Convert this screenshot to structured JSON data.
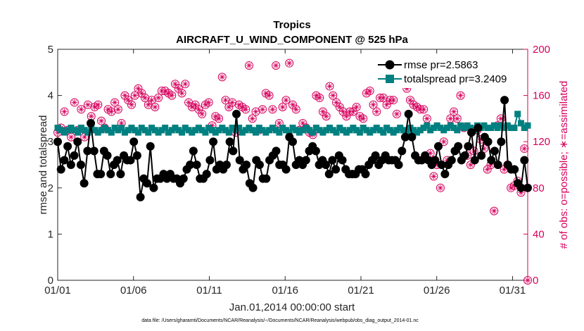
{
  "chart_data": {
    "type": "line",
    "title": "Tropics",
    "subtitle": "AIRCRAFT_U_WIND_COMPONENT @ 525 hPa",
    "xlabel": "Jan.01,2014 00:00:00 start",
    "ylabel": "rmse and totalspread",
    "y2label": "# of obs: o=possible; ∗=assimilated",
    "footnote": "data file: /Users/gharamti/Documents/NCAR/Reanalysis/~/Documents/NCAR/Reanalysis/webpub/obs_diag_output_2014-01.nc",
    "xlim": [
      0,
      31
    ],
    "ylim": [
      0,
      5
    ],
    "y2lim": [
      0,
      200
    ],
    "xticks": [
      0,
      5,
      10,
      15,
      20,
      25,
      30
    ],
    "xticklabels": [
      "01/01",
      "01/06",
      "01/11",
      "01/16",
      "01/21",
      "01/26",
      "01/31"
    ],
    "yticks": [
      0,
      1,
      2,
      3,
      4,
      5
    ],
    "y2ticks": [
      0,
      40,
      80,
      120,
      160,
      200
    ],
    "legend_location": "top-right",
    "series": [
      {
        "name": "rmse pr=2.5863",
        "axis": "left",
        "color": "#000000",
        "marker": "circle",
        "values": [
          3.0,
          2.4,
          2.6,
          2.9,
          2.5,
          2.7,
          3.0,
          2.5,
          2.1,
          2.8,
          3.4,
          2.8,
          2.3,
          2.3,
          2.8,
          2.7,
          2.3,
          2.5,
          2.6,
          2.3,
          2.7,
          2.6,
          2.6,
          3.0,
          2.7,
          1.8,
          2.2,
          2.1,
          2.9,
          2.0,
          2.2,
          2.2,
          2.3,
          2.2,
          2.3,
          2.2,
          2.2,
          2.1,
          2.2,
          2.4,
          2.5,
          2.8,
          2.5,
          2.2,
          2.2,
          2.3,
          2.6,
          3.0,
          2.4,
          2.5,
          2.4,
          2.5,
          3.0,
          2.8,
          3.6,
          2.6,
          2.4,
          2.5,
          2.1,
          2.0,
          2.6,
          2.5,
          2.2,
          2.2,
          2.6,
          2.7,
          2.8,
          2.5,
          2.5,
          2.4,
          3.1,
          3.0,
          2.5,
          2.6,
          2.5,
          2.6,
          2.8,
          2.9,
          2.8,
          2.5,
          2.6,
          2.5,
          2.3,
          2.6,
          2.4,
          2.7,
          2.6,
          2.4,
          2.3,
          2.3,
          2.3,
          2.4,
          2.4,
          2.3,
          2.5,
          2.6,
          2.7,
          2.5,
          2.6,
          2.7,
          2.6,
          2.6,
          2.6,
          2.5,
          2.8,
          3.1,
          3.6,
          3.1,
          2.7,
          2.6,
          2.6,
          2.7,
          2.6,
          2.5,
          2.6,
          2.9,
          2.5,
          2.3,
          2.5,
          2.6,
          2.8,
          2.9,
          2.6,
          2.7,
          2.9,
          3.2,
          2.6,
          3.3,
          2.7,
          3.1,
          3.0,
          2.6,
          2.8,
          2.5,
          3.0,
          3.9,
          2.5,
          2.4,
          2.4,
          2.1,
          2.0,
          2.6,
          2.0
        ]
      },
      {
        "name": "totalspread pr=3.2409",
        "axis": "left",
        "color": "#008080",
        "marker": "square",
        "values": [
          3.3,
          3.25,
          3.2,
          3.25,
          3.3,
          3.25,
          3.2,
          3.3,
          3.25,
          3.2,
          3.3,
          3.25,
          3.2,
          3.25,
          3.3,
          3.25,
          3.2,
          3.3,
          3.25,
          3.3,
          3.2,
          3.25,
          3.3,
          3.25,
          3.2,
          3.3,
          3.25,
          3.2,
          3.3,
          3.25,
          3.2,
          3.25,
          3.3,
          3.2,
          3.25,
          3.3,
          3.25,
          3.2,
          3.3,
          3.25,
          3.2,
          3.25,
          3.3,
          3.25,
          3.2,
          3.3,
          3.25,
          3.2,
          3.25,
          3.3,
          3.25,
          3.2,
          3.3,
          3.25,
          3.3,
          3.2,
          3.25,
          3.3,
          3.25,
          3.2,
          3.3,
          3.25,
          3.2,
          3.25,
          3.3,
          3.25,
          3.2,
          3.3,
          3.25,
          3.2,
          3.3,
          3.25,
          3.2,
          3.25,
          3.3,
          3.25,
          3.2,
          3.3,
          3.25,
          3.2,
          3.25,
          3.3,
          3.25,
          3.2,
          3.3,
          3.25,
          3.2,
          3.25,
          3.3,
          3.25,
          3.2,
          3.3,
          3.25,
          3.2,
          3.25,
          3.3,
          3.25,
          3.2,
          3.3,
          3.25,
          3.2,
          3.25,
          3.3,
          3.25,
          3.2,
          3.3,
          3.25,
          3.2,
          3.25,
          3.3,
          3.35,
          3.25,
          3.3,
          3.35,
          3.3,
          3.25,
          3.3,
          3.35,
          3.3,
          3.25,
          3.35,
          3.3,
          3.35,
          3.3,
          3.25,
          3.35,
          3.3,
          3.35,
          3.3,
          3.3,
          3.35,
          3.3,
          3.35,
          3.3,
          3.35,
          3.3,
          3.3,
          3.6,
          3.4,
          3.3,
          3.35
        ]
      },
      {
        "name": "obs possible",
        "axis": "right",
        "color": "#d6005c",
        "marker": "open-circle",
        "values": [
          128,
          132,
          146,
          130,
          124,
          154,
          130,
          148,
          124,
          152,
          142,
          150,
          152,
          138,
          132,
          148,
          146,
          154,
          148,
          136,
          160,
          156,
          152,
          160,
          166,
          162,
          158,
          152,
          156,
          150,
          158,
          164,
          164,
          162,
          160,
          170,
          166,
          162,
          170,
          154,
          150,
          152,
          148,
          144,
          152,
          154,
          134,
          142,
          140,
          176,
          156,
          150,
          154,
          128,
          152,
          150,
          148,
          186,
          140,
          146,
          130,
          148,
          162,
          160,
          148,
          186,
          136,
          150,
          156,
          188,
          152,
          148,
          130,
          136,
          132,
          128,
          126,
          160,
          158,
          146,
          142,
          168,
          160,
          154,
          150,
          146,
          142,
          146,
          146,
          150,
          142,
          140,
          162,
          164,
          152,
          146,
          158,
          158,
          152,
          156,
          156,
          144,
          186,
          176,
          166,
          156,
          152,
          150,
          148,
          148,
          140,
          110,
          90,
          100,
          80,
          120,
          104,
          140,
          146,
          140,
          160,
          132,
          108,
          100,
          112,
          130,
          122,
          114,
          96,
          100,
          60,
          134,
          140,
          96,
          100,
          80,
          82,
          86,
          76,
          114,
          0
        ]
      },
      {
        "name": "obs assimilated",
        "axis": "right",
        "color": "#d6005c",
        "marker": "asterisk",
        "values": [
          128,
          132,
          146,
          130,
          124,
          154,
          130,
          148,
          124,
          152,
          142,
          150,
          152,
          138,
          132,
          148,
          146,
          154,
          148,
          136,
          160,
          156,
          152,
          160,
          166,
          162,
          158,
          152,
          156,
          150,
          158,
          164,
          164,
          162,
          160,
          170,
          166,
          162,
          170,
          154,
          150,
          152,
          148,
          144,
          152,
          154,
          134,
          142,
          140,
          176,
          156,
          150,
          154,
          128,
          152,
          150,
          148,
          186,
          140,
          146,
          130,
          148,
          162,
          160,
          148,
          186,
          136,
          150,
          156,
          188,
          152,
          148,
          130,
          136,
          132,
          128,
          126,
          160,
          158,
          146,
          142,
          168,
          160,
          154,
          150,
          146,
          142,
          146,
          146,
          150,
          142,
          140,
          162,
          164,
          152,
          146,
          158,
          158,
          152,
          156,
          156,
          144,
          186,
          176,
          166,
          156,
          152,
          150,
          148,
          148,
          140,
          110,
          90,
          100,
          80,
          120,
          104,
          140,
          146,
          140,
          160,
          132,
          108,
          100,
          112,
          130,
          122,
          114,
          96,
          100,
          60,
          134,
          140,
          96,
          100,
          80,
          82,
          86,
          76,
          114,
          0
        ]
      }
    ]
  }
}
